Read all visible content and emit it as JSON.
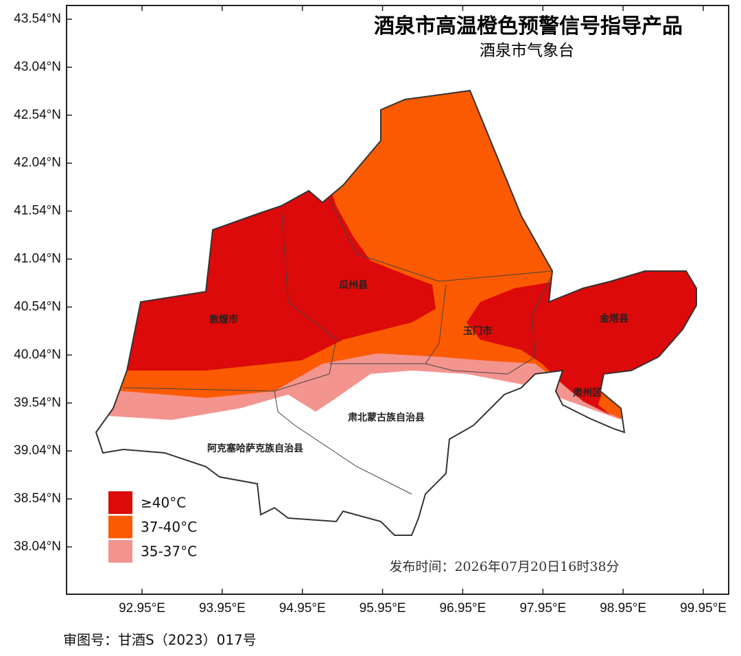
{
  "title": "酒泉市高温橙色预警信号指导产品",
  "subtitle": "酒泉市气象台",
  "lat_ticks": [
    {
      "value": 43.54,
      "label": "43.54°N"
    },
    {
      "value": 43.04,
      "label": "43.04°N"
    },
    {
      "value": 42.54,
      "label": "42.54°N"
    },
    {
      "value": 42.04,
      "label": "42.04°N"
    },
    {
      "value": 41.54,
      "label": "41.54°N"
    },
    {
      "value": 41.04,
      "label": "41.04°N"
    },
    {
      "value": 40.54,
      "label": "40.54°N"
    },
    {
      "value": 40.04,
      "label": "40.04°N"
    },
    {
      "value": 39.54,
      "label": "39.54°N"
    },
    {
      "value": 39.04,
      "label": "39.04°N"
    },
    {
      "value": 38.54,
      "label": "38.54°N"
    },
    {
      "value": 38.04,
      "label": "38.04°N"
    }
  ],
  "lon_ticks": [
    {
      "value": 92.95,
      "label": "92.95°E"
    },
    {
      "value": 93.95,
      "label": "93.95°E"
    },
    {
      "value": 94.95,
      "label": "94.95°E"
    },
    {
      "value": 95.95,
      "label": "95.95°E"
    },
    {
      "value": 96.95,
      "label": "96.95°E"
    },
    {
      "value": 97.95,
      "label": "97.95°E"
    },
    {
      "value": 98.95,
      "label": "98.95°E"
    },
    {
      "value": 99.95,
      "label": "99.95°E"
    }
  ],
  "legend": [
    {
      "label": "≥40°C",
      "color": "#dc0a0a"
    },
    {
      "label": "37-40°C",
      "color": "#fb5a00"
    },
    {
      "label": "35-37°C",
      "color": "#f4948f"
    }
  ],
  "regions": [
    "敦煌市",
    "瓜州县",
    "玉门市",
    "金塔县",
    "肃州区",
    "肃北蒙古族自治县",
    "阿克塞哈萨克族自治县"
  ],
  "issue_time": "发布时间：2026年07月20日16时38分",
  "footer": "审图号：甘酒S（2023）017号"
}
